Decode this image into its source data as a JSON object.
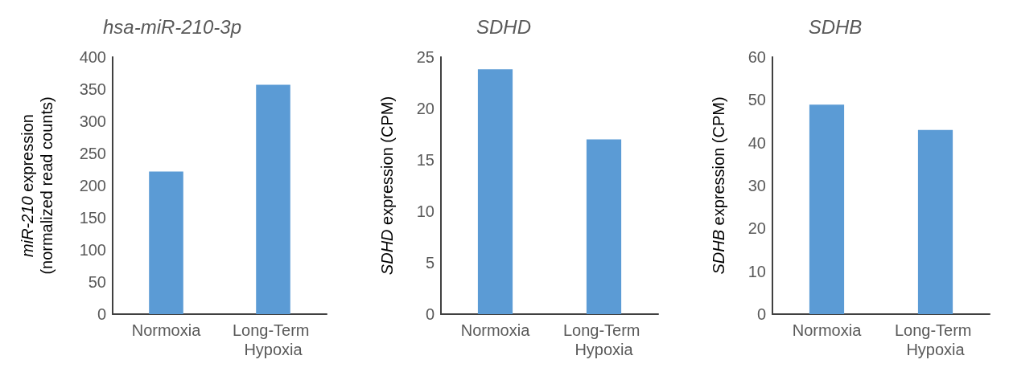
{
  "chart_data": [
    {
      "type": "bar",
      "title": "hsa-miR-210-3p",
      "ylabel": "miR-210 expression\n(normalized read counts)",
      "categories": [
        "Normoxia",
        "Long-Term Hypoxia"
      ],
      "values": [
        222,
        357
      ],
      "color": "#5b9bd5",
      "ylim": [
        0,
        400
      ],
      "yticks": [
        0,
        50,
        100,
        150,
        200,
        250,
        300,
        350,
        400
      ]
    },
    {
      "type": "bar",
      "title": "SDHD",
      "ylabel": "SDHD expression (CPM)",
      "categories": [
        "Normoxia",
        "Long-Term Hypoxia"
      ],
      "values": [
        23.8,
        17.0
      ],
      "color": "#5b9bd5",
      "ylim": [
        0,
        25
      ],
      "yticks": [
        0,
        5,
        10,
        15,
        20,
        25
      ]
    },
    {
      "type": "bar",
      "title": "SDHB",
      "ylabel": "SDHB expression (CPM)",
      "categories": [
        "Normoxia",
        "Long-Term Hypoxia"
      ],
      "values": [
        48.9,
        43.0
      ],
      "color": "#5b9bd5",
      "ylim": [
        0,
        60
      ],
      "yticks": [
        0,
        10,
        20,
        30,
        40,
        50,
        60
      ]
    }
  ]
}
